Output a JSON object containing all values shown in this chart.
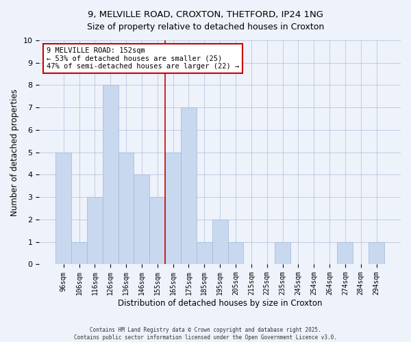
{
  "title": "9, MELVILLE ROAD, CROXTON, THETFORD, IP24 1NG",
  "subtitle": "Size of property relative to detached houses in Croxton",
  "xlabel": "Distribution of detached houses by size in Croxton",
  "ylabel": "Number of detached properties",
  "categories": [
    "96sqm",
    "106sqm",
    "116sqm",
    "126sqm",
    "136sqm",
    "146sqm",
    "155sqm",
    "165sqm",
    "175sqm",
    "185sqm",
    "195sqm",
    "205sqm",
    "215sqm",
    "225sqm",
    "235sqm",
    "245sqm",
    "254sqm",
    "264sqm",
    "274sqm",
    "284sqm",
    "294sqm"
  ],
  "values": [
    5,
    1,
    3,
    8,
    5,
    4,
    3,
    5,
    7,
    1,
    2,
    1,
    0,
    0,
    1,
    0,
    0,
    0,
    1,
    0,
    1
  ],
  "bar_color": "#c8d8ee",
  "bar_edge_color": "#a0b8d8",
  "highlight_index": 6,
  "vline_color": "#cc0000",
  "ylim": [
    0,
    10
  ],
  "yticks": [
    0,
    1,
    2,
    3,
    4,
    5,
    6,
    7,
    8,
    9,
    10
  ],
  "grid_color": "#b0bcd8",
  "bg_color": "#eef2fa",
  "annotation_line1": "9 MELVILLE ROAD: 152sqm",
  "annotation_line2": "← 53% of detached houses are smaller (25)",
  "annotation_line3": "47% of semi-detached houses are larger (22) →",
  "annotation_box_facecolor": "#ffffff",
  "annotation_border_color": "#cc0000",
  "footer1": "Contains HM Land Registry data © Crown copyright and database right 2025.",
  "footer2": "Contains public sector information licensed under the Open Government Licence v3.0.",
  "title_fontsize": 9.5,
  "subtitle_fontsize": 9,
  "axis_label_fontsize": 8.5,
  "tick_fontsize": 7,
  "annotation_fontsize": 7.5,
  "footer_fontsize": 5.5
}
